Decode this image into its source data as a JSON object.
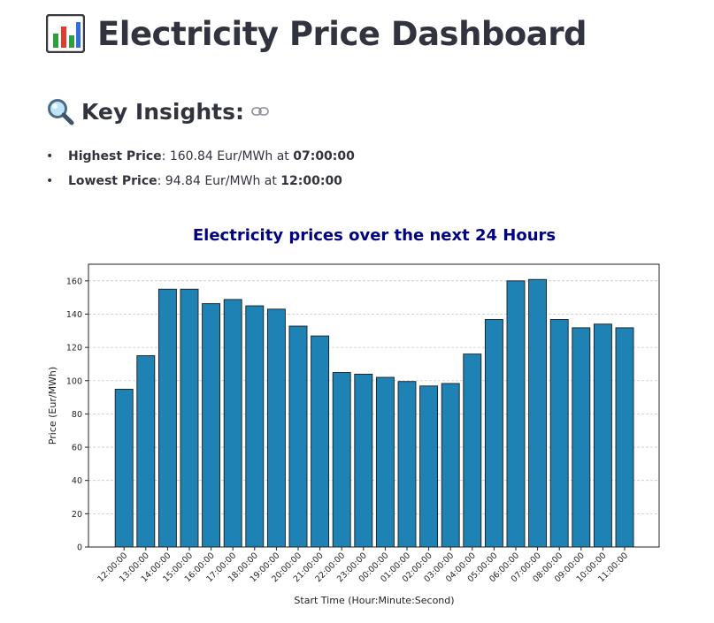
{
  "header": {
    "title": "Electricity Price Dashboard",
    "icon": "bar-chart-icon"
  },
  "insights": {
    "heading": "Key Insights:",
    "heading_icon": "magnifying-glass-icon",
    "anchor_icon": "link-icon",
    "items": [
      {
        "label": "Highest Price",
        "sep": ": ",
        "value": "160.84 Eur/MWh",
        "at": " at ",
        "time": "07:00:00"
      },
      {
        "label": "Lowest Price",
        "sep": ": ",
        "value": "94.84 Eur/MWh",
        "at": " at ",
        "time": "12:00:00"
      }
    ]
  },
  "chart_data": {
    "type": "bar",
    "title": "Electricity prices over the next 24 Hours",
    "xlabel": "Start Time (Hour:Minute:Second)",
    "ylabel": "Price (Eur/MWh)",
    "ylim": [
      0,
      170
    ],
    "yticks": [
      0,
      20,
      40,
      60,
      80,
      100,
      120,
      140,
      160
    ],
    "grid": "y-dashed",
    "bar_color": "#1f82b4",
    "title_color": "#000080",
    "categories": [
      "12:00:00",
      "13:00:00",
      "14:00:00",
      "15:00:00",
      "16:00:00",
      "17:00:00",
      "18:00:00",
      "19:00:00",
      "20:00:00",
      "21:00:00",
      "22:00:00",
      "23:00:00",
      "00:00:00",
      "01:00:00",
      "02:00:00",
      "03:00:00",
      "04:00:00",
      "05:00:00",
      "06:00:00",
      "07:00:00",
      "08:00:00",
      "09:00:00",
      "10:00:00",
      "11:00:00"
    ],
    "values": [
      94.84,
      115.0,
      155.0,
      155.0,
      146.3,
      148.8,
      145.0,
      143.0,
      132.8,
      126.9,
      104.9,
      103.9,
      102.0,
      99.5,
      96.8,
      98.3,
      116.0,
      136.8,
      160.0,
      160.84,
      136.8,
      131.8,
      134.0,
      131.8
    ]
  }
}
